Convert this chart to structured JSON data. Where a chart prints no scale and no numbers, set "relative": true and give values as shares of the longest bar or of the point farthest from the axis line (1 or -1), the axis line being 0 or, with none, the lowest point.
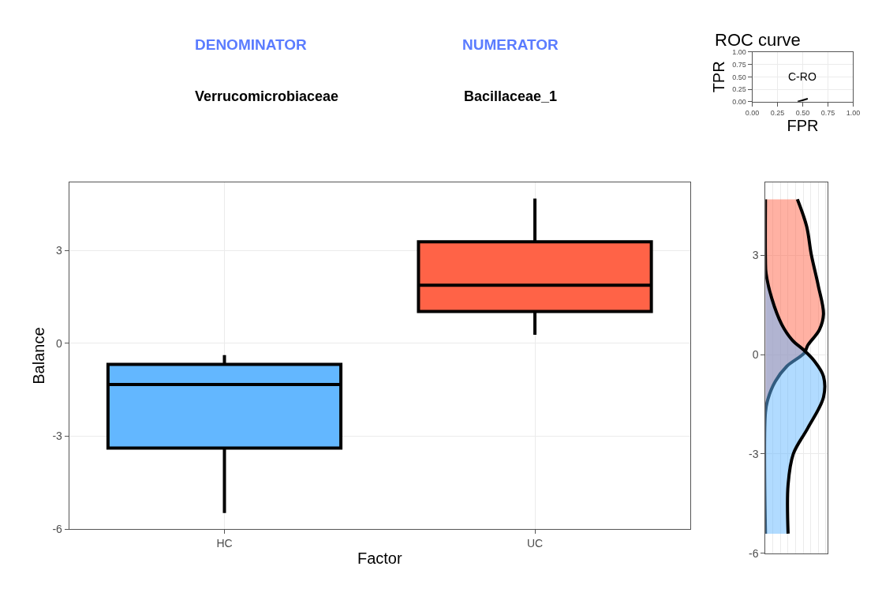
{
  "chart_data": [
    {
      "type": "other",
      "annotations": [
        "DENOMINATOR",
        "Verrucomicrobiaceae",
        "NUMERATOR",
        "Bacillaceae_1"
      ],
      "colors": [
        "#5b7cff",
        "#000000",
        "#5b7cff",
        "#000000"
      ]
    },
    {
      "type": "line",
      "title": "ROC curve",
      "xlabel": "FPR",
      "ylabel": "TPR",
      "xlim": [
        0,
        1
      ],
      "ylim": [
        0,
        1
      ],
      "xticks": [
        {
          "value": 0,
          "label": "0.00"
        },
        {
          "value": 0.25,
          "label": "0.25"
        },
        {
          "value": 0.5,
          "label": "0.50"
        },
        {
          "value": 0.75,
          "label": "0.75"
        },
        {
          "value": 1,
          "label": "1.00"
        }
      ],
      "yticks": [
        {
          "value": 0,
          "label": "0.00"
        },
        {
          "value": 0.25,
          "label": "0.25"
        },
        {
          "value": 0.5,
          "label": "0.50"
        },
        {
          "value": 0.75,
          "label": "0.75"
        },
        {
          "value": 1,
          "label": "1.00"
        }
      ],
      "grid": true,
      "annotations": [
        "C-RO"
      ],
      "series": [
        {
          "color": "#000000",
          "x": [
            0.45,
            0.55
          ],
          "values": [
            0.0,
            0.06
          ]
        }
      ]
    },
    {
      "type": "box",
      "xlabel": "Factor",
      "ylabel": "Balance",
      "categories": [
        "HC",
        "UC"
      ],
      "ylim": [
        -6,
        5.2
      ],
      "yticks": [
        -6,
        -3,
        0,
        3
      ],
      "grid": true,
      "colors": [
        "#63b7ff",
        "#ff6347"
      ],
      "boxes": [
        {
          "low": -5.48,
          "q1": -3.38,
          "median": -1.33,
          "q3": -0.68,
          "high": -0.38
        },
        {
          "low": 0.28,
          "q1": 1.03,
          "median": 1.88,
          "q3": 3.28,
          "high": 4.68
        }
      ]
    },
    {
      "type": "area",
      "orientation": "horizontal",
      "relative": true,
      "ylim": [
        -6,
        5.2
      ],
      "yticks": [
        -6,
        -3,
        0,
        3
      ],
      "grid": true,
      "series": [
        {
          "color": "#ff6347",
          "x": [
            4.69,
            3.87,
            3.02,
            2.08,
            1.22,
            0.75,
            0.28,
            0.05,
            -0.35,
            -0.81,
            -1.36,
            -1.75,
            -5.41
          ],
          "values": [
            0.55,
            0.71,
            0.79,
            0.91,
            1,
            0.93,
            0.73,
            0.67,
            0.37,
            0.17,
            0.04,
            0,
            0
          ]
        },
        {
          "color": "#63b7ff",
          "x": [
            -5.41,
            -3.93,
            -3.0,
            -2.22,
            -1.29,
            -0.66,
            -0.19,
            0.12,
            0.44,
            0.91,
            1.69,
            2.46,
            2.86,
            4.69
          ],
          "values": [
            0.39,
            0.39,
            0.48,
            0.73,
            1,
            1,
            0.84,
            0.67,
            0.46,
            0.28,
            0.11,
            0.01,
            0,
            0
          ]
        }
      ]
    }
  ]
}
